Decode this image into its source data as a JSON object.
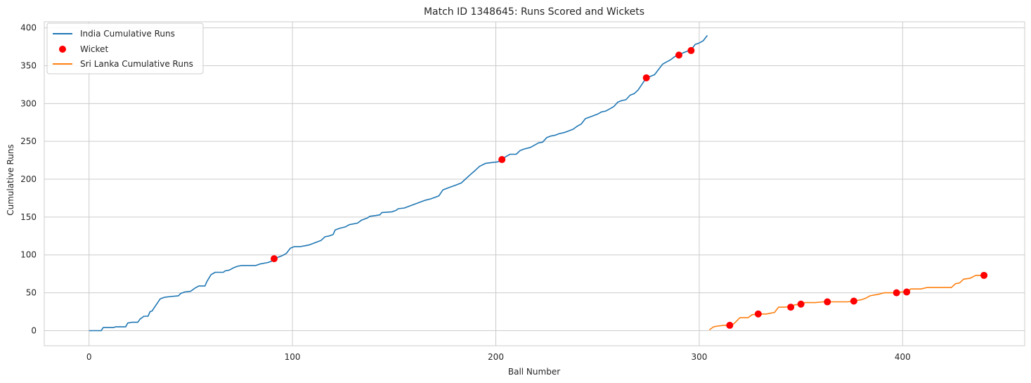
{
  "chart_data": {
    "type": "line",
    "title": "Match ID 1348645: Runs Scored and Wickets",
    "xlabel": "Ball Number",
    "ylabel": "Cumulative Runs",
    "xlim": [
      -22,
      460
    ],
    "ylim": [
      -20,
      408
    ],
    "xticks": [
      0,
      100,
      200,
      300,
      400
    ],
    "yticks": [
      0,
      50,
      100,
      150,
      200,
      250,
      300,
      350,
      400
    ],
    "grid": true,
    "legend_position": "top-left",
    "legend": [
      "India Cumulative Runs",
      "Wicket",
      "Sri Lanka Cumulative Runs"
    ],
    "colors": {
      "india": "#1f77b4",
      "srilanka": "#ff7f0e",
      "wicket": "#ff0000",
      "grid": "#cccccc",
      "axes": "#cccccc"
    },
    "series": [
      {
        "name": "India Cumulative Runs",
        "points": [
          [
            0,
            0
          ],
          [
            5,
            0
          ],
          [
            6,
            0
          ],
          [
            7,
            4
          ],
          [
            12,
            4
          ],
          [
            13,
            5
          ],
          [
            18,
            5
          ],
          [
            19,
            10
          ],
          [
            21,
            11
          ],
          [
            24,
            11
          ],
          [
            25,
            15
          ],
          [
            27,
            19
          ],
          [
            29,
            19
          ],
          [
            30,
            25
          ],
          [
            31,
            26
          ],
          [
            32,
            30
          ],
          [
            35,
            42
          ],
          [
            37,
            44
          ],
          [
            40,
            45
          ],
          [
            44,
            46
          ],
          [
            45,
            49
          ],
          [
            47,
            51
          ],
          [
            50,
            52
          ],
          [
            52,
            56
          ],
          [
            54,
            59
          ],
          [
            57,
            59
          ],
          [
            58,
            65
          ],
          [
            60,
            74
          ],
          [
            62,
            77
          ],
          [
            66,
            77
          ],
          [
            67,
            79
          ],
          [
            69,
            80
          ],
          [
            71,
            83
          ],
          [
            73,
            85
          ],
          [
            75,
            86
          ],
          [
            82,
            86
          ],
          [
            84,
            88
          ],
          [
            86,
            89
          ],
          [
            88,
            90
          ],
          [
            90,
            92
          ],
          [
            91,
            95
          ],
          [
            92,
            96
          ],
          [
            95,
            99
          ],
          [
            97,
            102
          ],
          [
            99,
            109
          ],
          [
            101,
            111
          ],
          [
            104,
            111
          ],
          [
            106,
            112
          ],
          [
            108,
            113
          ],
          [
            110,
            115
          ],
          [
            112,
            117
          ],
          [
            114,
            119
          ],
          [
            116,
            124
          ],
          [
            118,
            125
          ],
          [
            120,
            127
          ],
          [
            121,
            133
          ],
          [
            123,
            135
          ],
          [
            126,
            137
          ],
          [
            128,
            140
          ],
          [
            132,
            142
          ],
          [
            134,
            146
          ],
          [
            137,
            149
          ],
          [
            138,
            151
          ],
          [
            141,
            152
          ],
          [
            143,
            153
          ],
          [
            144,
            156
          ],
          [
            149,
            157
          ],
          [
            151,
            159
          ],
          [
            152,
            161
          ],
          [
            155,
            162
          ],
          [
            158,
            165
          ],
          [
            160,
            167
          ],
          [
            163,
            170
          ],
          [
            165,
            172
          ],
          [
            168,
            174
          ],
          [
            170,
            176
          ],
          [
            172,
            178
          ],
          [
            174,
            186
          ],
          [
            177,
            189
          ],
          [
            180,
            192
          ],
          [
            183,
            195
          ],
          [
            185,
            200
          ],
          [
            187,
            205
          ],
          [
            190,
            212
          ],
          [
            192,
            217
          ],
          [
            195,
            221
          ],
          [
            198,
            222
          ],
          [
            201,
            223
          ],
          [
            203,
            226
          ],
          [
            205,
            230
          ],
          [
            207,
            233
          ],
          [
            210,
            233
          ],
          [
            212,
            238
          ],
          [
            214,
            240
          ],
          [
            217,
            242
          ],
          [
            219,
            245
          ],
          [
            221,
            248
          ],
          [
            223,
            249
          ],
          [
            225,
            255
          ],
          [
            227,
            257
          ],
          [
            229,
            258
          ],
          [
            231,
            260
          ],
          [
            234,
            262
          ],
          [
            236,
            264
          ],
          [
            238,
            266
          ],
          [
            240,
            270
          ],
          [
            242,
            273
          ],
          [
            244,
            280
          ],
          [
            246,
            282
          ],
          [
            248,
            284
          ],
          [
            250,
            286
          ],
          [
            252,
            289
          ],
          [
            254,
            290
          ],
          [
            256,
            293
          ],
          [
            258,
            296
          ],
          [
            260,
            302
          ],
          [
            262,
            304
          ],
          [
            264,
            305
          ],
          [
            266,
            311
          ],
          [
            268,
            313
          ],
          [
            270,
            318
          ],
          [
            272,
            326
          ],
          [
            274,
            334
          ],
          [
            276,
            336
          ],
          [
            278,
            338
          ],
          [
            280,
            345
          ],
          [
            282,
            352
          ],
          [
            284,
            355
          ],
          [
            286,
            358
          ],
          [
            288,
            362
          ],
          [
            290,
            364
          ],
          [
            292,
            367
          ],
          [
            294,
            369
          ],
          [
            296,
            371
          ],
          [
            298,
            378
          ],
          [
            300,
            380
          ],
          [
            302,
            383
          ],
          [
            304,
            390
          ]
        ]
      },
      {
        "name": "Sri Lanka Cumulative Runs",
        "points": [
          [
            305,
            1
          ],
          [
            307,
            5
          ],
          [
            309,
            6
          ],
          [
            312,
            7
          ],
          [
            315,
            7
          ],
          [
            317,
            9
          ],
          [
            320,
            17
          ],
          [
            324,
            17
          ],
          [
            326,
            21
          ],
          [
            329,
            22
          ],
          [
            333,
            22
          ],
          [
            335,
            23
          ],
          [
            337,
            24
          ],
          [
            339,
            31
          ],
          [
            342,
            31
          ],
          [
            345,
            32
          ],
          [
            347,
            34
          ],
          [
            350,
            35
          ],
          [
            352,
            37
          ],
          [
            357,
            37
          ],
          [
            361,
            38
          ],
          [
            363,
            38
          ],
          [
            367,
            38
          ],
          [
            370,
            38
          ],
          [
            373,
            38
          ],
          [
            376,
            39
          ],
          [
            378,
            40
          ],
          [
            380,
            41
          ],
          [
            382,
            43
          ],
          [
            384,
            46
          ],
          [
            388,
            48
          ],
          [
            391,
            50
          ],
          [
            394,
            50
          ],
          [
            397,
            50
          ],
          [
            399,
            51
          ],
          [
            402,
            51
          ],
          [
            404,
            55
          ],
          [
            409,
            55
          ],
          [
            412,
            57
          ],
          [
            418,
            57
          ],
          [
            424,
            57
          ],
          [
            426,
            62
          ],
          [
            428,
            63
          ],
          [
            430,
            68
          ],
          [
            433,
            69
          ],
          [
            436,
            73
          ],
          [
            440,
            73
          ]
        ]
      }
    ],
    "wickets": [
      [
        91,
        95
      ],
      [
        203,
        226
      ],
      [
        274,
        334
      ],
      [
        290,
        364
      ],
      [
        296,
        370
      ],
      [
        315,
        7
      ],
      [
        329,
        22
      ],
      [
        345,
        31
      ],
      [
        350,
        35
      ],
      [
        363,
        38
      ],
      [
        376,
        39
      ],
      [
        397,
        50
      ],
      [
        402,
        51
      ],
      [
        440,
        73
      ]
    ]
  }
}
